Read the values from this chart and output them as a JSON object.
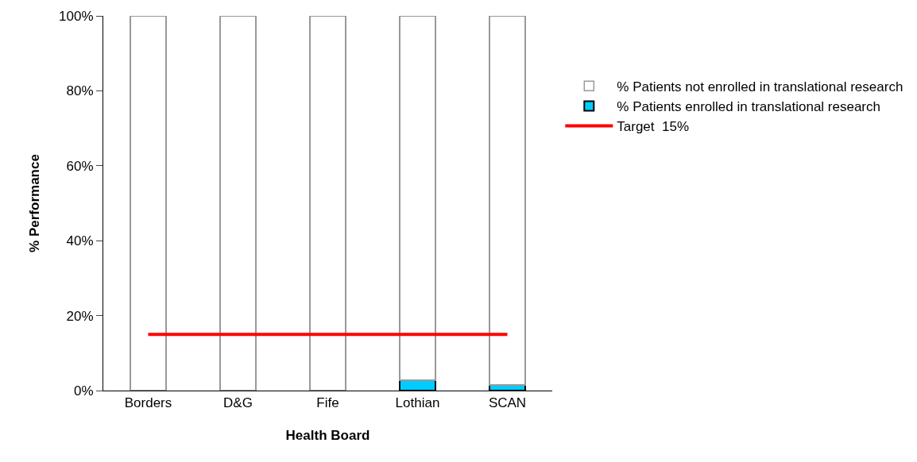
{
  "chart_data": {
    "type": "bar",
    "stacked": true,
    "xlabel": "Health Board",
    "ylabel": "% Performance",
    "categories": [
      "Borders",
      "D&G",
      "Fife",
      "Lothian",
      "SCAN"
    ],
    "series": [
      {
        "name": "% Patients enrolled in translational research",
        "color": "#00ccff",
        "values": [
          0,
          0,
          0,
          2.8,
          1.5
        ]
      },
      {
        "name": "% Patients not enrolled in translational research",
        "color": "#ffffff",
        "values": [
          100,
          100,
          100,
          97.2,
          98.5
        ]
      },
      {
        "name": "Target  15%",
        "type": "line",
        "color": "#ff0000",
        "values": [
          15,
          15,
          15,
          15,
          15
        ]
      }
    ],
    "ylim": [
      0,
      100
    ],
    "yticks": [
      {
        "value": 0,
        "label": "0%"
      },
      {
        "value": 20,
        "label": "20%"
      },
      {
        "value": 40,
        "label": "40%"
      },
      {
        "value": 60,
        "label": "60%"
      },
      {
        "value": 80,
        "label": "80%"
      },
      {
        "value": 100,
        "label": "100%"
      }
    ],
    "grid": false,
    "legend": "right",
    "marker": "none",
    "line_style": "solid"
  }
}
